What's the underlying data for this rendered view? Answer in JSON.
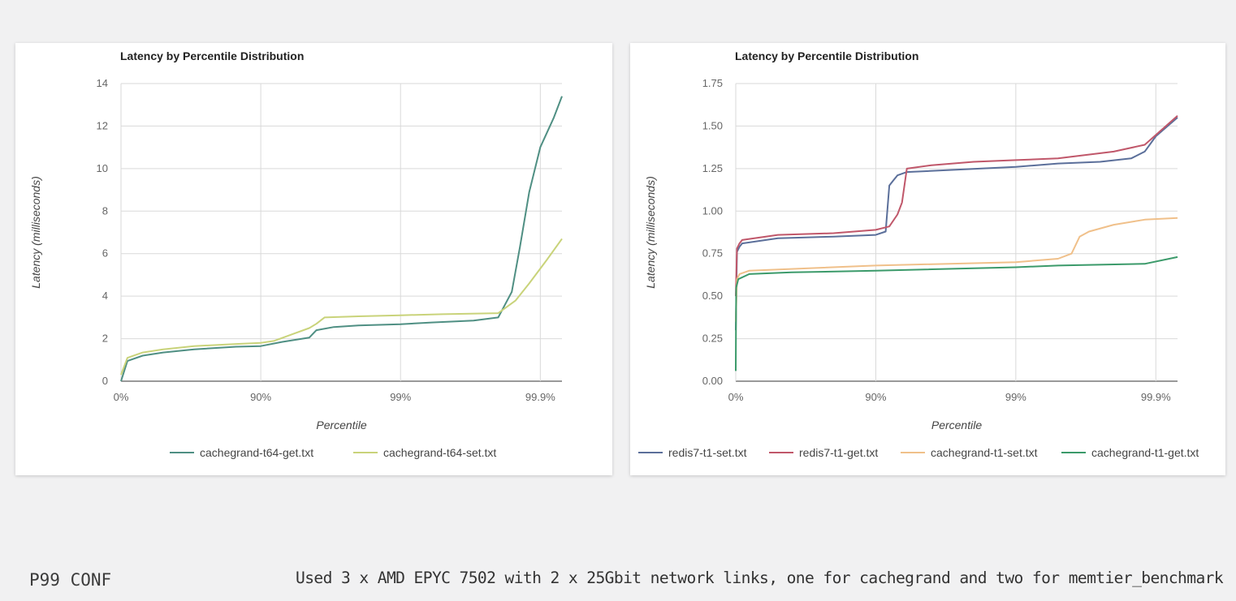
{
  "chart_data": [
    {
      "type": "line",
      "title": "Latency by Percentile Distribution",
      "xlabel": "Percentile",
      "ylabel": "Latency (milliseconds)",
      "x_scale": "log_percentile",
      "x_ticks": [
        "0%",
        "90%",
        "99%",
        "99.9%"
      ],
      "y_ticks": [
        "0",
        "2",
        "4",
        "6",
        "8",
        "10",
        "12",
        "14"
      ],
      "ylim": [
        0,
        14
      ],
      "grid": true,
      "legend_position": "bottom",
      "series": [
        {
          "name": "cachegrand-t64-get.txt",
          "color": "#4f8f83",
          "points": [
            [
              0,
              0
            ],
            [
              10,
              0.95
            ],
            [
              30,
              1.2
            ],
            [
              50,
              1.35
            ],
            [
              70,
              1.5
            ],
            [
              85,
              1.62
            ],
            [
              90,
              1.65
            ],
            [
              93,
              1.85
            ],
            [
              95.5,
              2.05
            ],
            [
              96,
              2.4
            ],
            [
              97,
              2.55
            ],
            [
              98,
              2.62
            ],
            [
              99,
              2.68
            ],
            [
              99.4,
              2.76
            ],
            [
              99.7,
              2.85
            ],
            [
              99.8,
              3.0
            ],
            [
              99.84,
              4.2
            ],
            [
              99.86,
              6.3
            ],
            [
              99.88,
              8.9
            ],
            [
              99.9,
              11.0
            ],
            [
              99.92,
              12.4
            ],
            [
              99.93,
              13.4
            ]
          ]
        },
        {
          "name": "cachegrand-t64-set.txt",
          "color": "#c9d37a",
          "points": [
            [
              0,
              0.3
            ],
            [
              10,
              1.1
            ],
            [
              30,
              1.35
            ],
            [
              50,
              1.5
            ],
            [
              70,
              1.65
            ],
            [
              85,
              1.75
            ],
            [
              90,
              1.8
            ],
            [
              92,
              1.9
            ],
            [
              94,
              2.2
            ],
            [
              95.5,
              2.5
            ],
            [
              96,
              2.7
            ],
            [
              96.5,
              3.0
            ],
            [
              98,
              3.05
            ],
            [
              99,
              3.1
            ],
            [
              99.5,
              3.15
            ],
            [
              99.8,
              3.2
            ],
            [
              99.85,
              3.8
            ],
            [
              99.88,
              4.6
            ],
            [
              99.91,
              5.7
            ],
            [
              99.93,
              6.7
            ]
          ]
        }
      ]
    },
    {
      "type": "line",
      "title": "Latency by Percentile Distribution",
      "xlabel": "Percentile",
      "ylabel": "Latency (milliseconds)",
      "x_scale": "log_percentile",
      "x_ticks": [
        "0%",
        "90%",
        "99%",
        "99.9%"
      ],
      "y_ticks": [
        "0.00",
        "0.25",
        "0.50",
        "0.75",
        "1.00",
        "1.25",
        "1.50",
        "1.75"
      ],
      "ylim": [
        0,
        1.75
      ],
      "grid": true,
      "legend_position": "bottom",
      "series": [
        {
          "name": "redis7-t1-set.txt",
          "color": "#5b6f9a",
          "points": [
            [
              0,
              0.3
            ],
            [
              2,
              0.76
            ],
            [
              6,
              0.79
            ],
            [
              10,
              0.81
            ],
            [
              50,
              0.84
            ],
            [
              80,
              0.85
            ],
            [
              90,
              0.86
            ],
            [
              91.5,
              0.88
            ],
            [
              92,
              1.15
            ],
            [
              92.5,
              1.18
            ],
            [
              93,
              1.21
            ],
            [
              94,
              1.23
            ],
            [
              99,
              1.26
            ],
            [
              99.5,
              1.28
            ],
            [
              99.75,
              1.29
            ],
            [
              99.85,
              1.31
            ],
            [
              99.88,
              1.35
            ],
            [
              99.9,
              1.44
            ],
            [
              99.93,
              1.55
            ]
          ]
        },
        {
          "name": "redis7-t1-get.txt",
          "color": "#c0576a",
          "points": [
            [
              0,
              0.5
            ],
            [
              2,
              0.78
            ],
            [
              6,
              0.81
            ],
            [
              10,
              0.83
            ],
            [
              50,
              0.86
            ],
            [
              80,
              0.87
            ],
            [
              90,
              0.89
            ],
            [
              92,
              0.91
            ],
            [
              93,
              0.98
            ],
            [
              93.5,
              1.05
            ],
            [
              94,
              1.25
            ],
            [
              96,
              1.27
            ],
            [
              98,
              1.29
            ],
            [
              99,
              1.3
            ],
            [
              99.5,
              1.31
            ],
            [
              99.8,
              1.35
            ],
            [
              99.88,
              1.39
            ],
            [
              99.93,
              1.56
            ]
          ]
        },
        {
          "name": "cachegrand-t1-set.txt",
          "color": "#f0c08a",
          "points": [
            [
              0,
              0.35
            ],
            [
              2,
              0.6
            ],
            [
              6,
              0.63
            ],
            [
              20,
              0.65
            ],
            [
              60,
              0.66
            ],
            [
              90,
              0.68
            ],
            [
              99,
              0.7
            ],
            [
              99.5,
              0.72
            ],
            [
              99.6,
              0.75
            ],
            [
              99.65,
              0.85
            ],
            [
              99.7,
              0.88
            ],
            [
              99.8,
              0.92
            ],
            [
              99.88,
              0.95
            ],
            [
              99.93,
              0.96
            ]
          ]
        },
        {
          "name": "cachegrand-t1-get.txt",
          "color": "#3b9a6a",
          "points": [
            [
              0,
              0.06
            ],
            [
              0.6,
              0.55
            ],
            [
              4,
              0.6
            ],
            [
              20,
              0.63
            ],
            [
              60,
              0.64
            ],
            [
              90,
              0.65
            ],
            [
              99,
              0.67
            ],
            [
              99.5,
              0.68
            ],
            [
              99.88,
              0.69
            ],
            [
              99.93,
              0.73
            ]
          ]
        }
      ]
    }
  ],
  "footer": {
    "brand": "P99 CONF",
    "caption": "Used 3 x AMD EPYC 7502 with 2 x 25Gbit network links, one for cachegrand and two for memtier_benchmark"
  }
}
